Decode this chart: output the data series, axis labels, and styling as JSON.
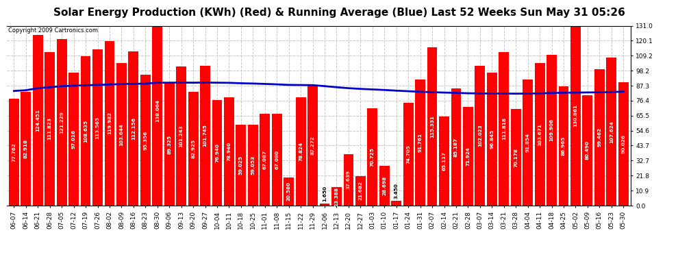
{
  "title": "Solar Energy Production (KWh) (Red) & Running Average (Blue) Last 52 Weeks Sun May 31 05:26",
  "copyright": "Copyright 2009 Cartronics.com",
  "bar_color": "#ff0000",
  "avg_line_color": "#0000cc",
  "bg_color": "#ffffff",
  "plot_bg_color": "#ffffff",
  "grid_color": "#c8c8c8",
  "categories": [
    "06-07",
    "06-14",
    "06-21",
    "06-28",
    "07-05",
    "07-12",
    "07-19",
    "07-26",
    "08-02",
    "08-09",
    "08-16",
    "08-23",
    "08-30",
    "09-06",
    "09-13",
    "09-20",
    "09-27",
    "10-04",
    "10-11",
    "10-18",
    "10-25",
    "11-01",
    "11-08",
    "11-15",
    "11-22",
    "11-29",
    "12-06",
    "12-13",
    "12-20",
    "12-27",
    "01-03",
    "01-10",
    "01-17",
    "01-24",
    "01-31",
    "02-07",
    "02-14",
    "02-21",
    "02-28",
    "03-07",
    "03-14",
    "03-21",
    "03-28",
    "04-04",
    "04-11",
    "04-18",
    "04-25",
    "05-02",
    "05-09",
    "05-16",
    "05-23",
    "05-30"
  ],
  "values": [
    77.762,
    82.918,
    124.451,
    111.823,
    121.229,
    97.016,
    108.635,
    113.565,
    119.982,
    103.644,
    112.156,
    95.356,
    138.064,
    89.325,
    101.243,
    82.925,
    101.745,
    76.94,
    78.94,
    59.025,
    59.053,
    67.087,
    67.08,
    20.58,
    78.824,
    87.272,
    1.65,
    13.388,
    37.639,
    21.682,
    70.725,
    28.698,
    3.45,
    74.705,
    91.761,
    115.331,
    65.117,
    85.187,
    71.924,
    102.023,
    96.845,
    111.818,
    70.178,
    91.854,
    103.671,
    109.906,
    86.965,
    130.861,
    80.49,
    99.462,
    107.624,
    90.026
  ],
  "running_avg": [
    83.5,
    84.0,
    85.5,
    86.2,
    87.0,
    87.3,
    87.6,
    87.9,
    88.2,
    88.5,
    88.7,
    88.8,
    89.5,
    89.5,
    89.6,
    89.5,
    89.6,
    89.5,
    89.4,
    89.1,
    88.9,
    88.6,
    88.3,
    87.9,
    87.8,
    87.7,
    87.0,
    86.2,
    85.5,
    85.0,
    84.6,
    84.2,
    83.7,
    83.3,
    82.9,
    82.6,
    82.3,
    82.1,
    81.8,
    81.7,
    81.6,
    81.6,
    81.5,
    81.6,
    81.7,
    82.0,
    82.2,
    82.3,
    82.4,
    82.5,
    82.7,
    83.0
  ],
  "ylim": [
    0.0,
    131.0
  ],
  "yticks": [
    0.0,
    10.9,
    21.8,
    32.7,
    43.7,
    54.6,
    65.5,
    76.4,
    87.3,
    98.2,
    109.2,
    120.1,
    131.0
  ],
  "title_fontsize": 11,
  "tick_fontsize": 6.5,
  "value_fontsize": 5.2,
  "copyright_fontsize": 6
}
